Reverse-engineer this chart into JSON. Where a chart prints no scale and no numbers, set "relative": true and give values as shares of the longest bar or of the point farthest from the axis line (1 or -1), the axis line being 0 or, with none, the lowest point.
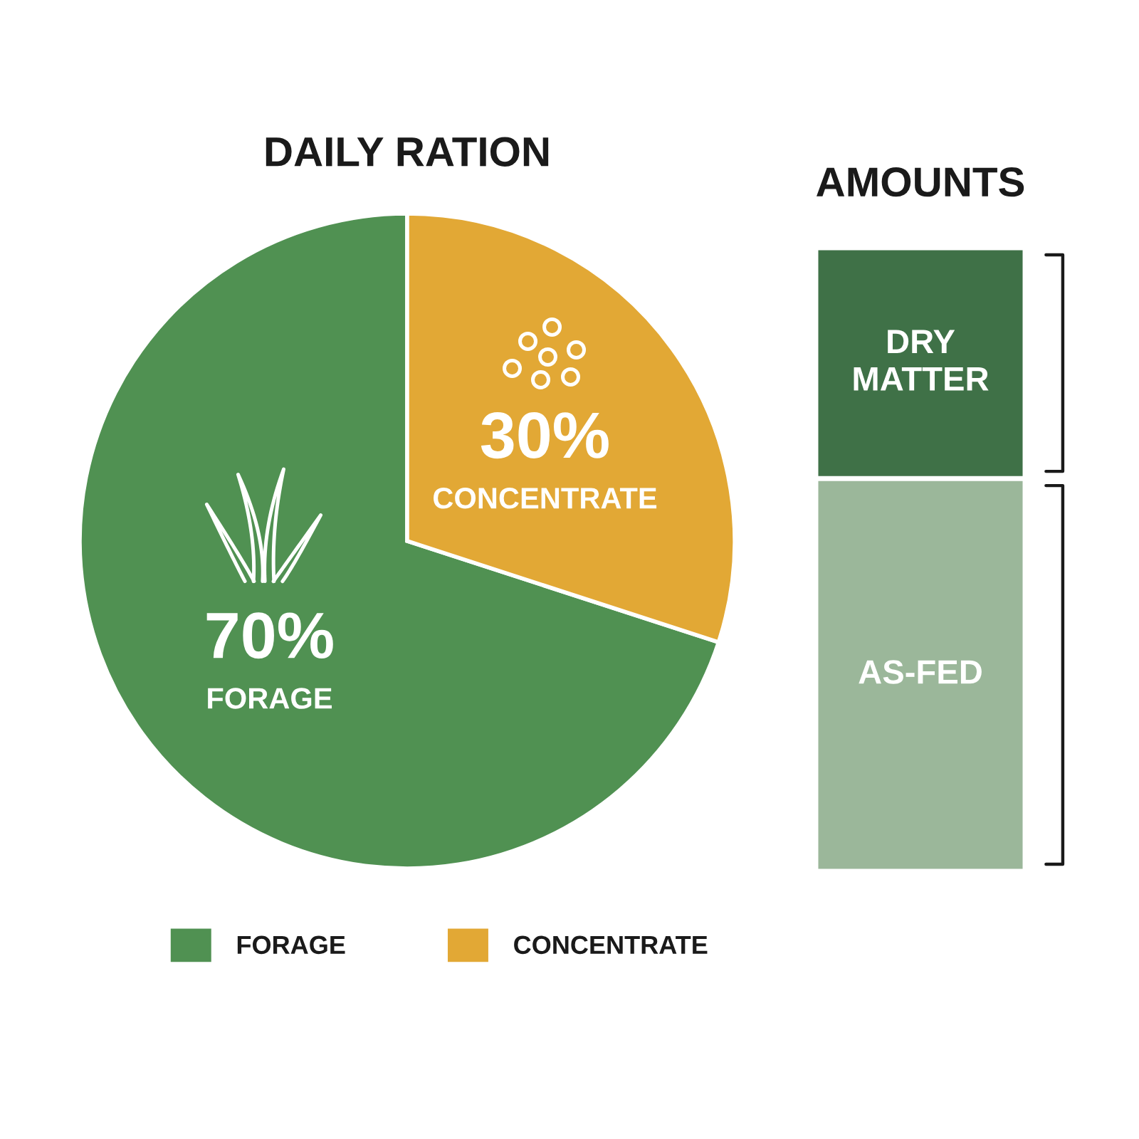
{
  "chart_data": [
    {
      "type": "pie",
      "title": "DAILY RATION",
      "categories": [
        "FORAGE",
        "CONCENTRATE"
      ],
      "values": [
        70,
        30
      ],
      "colors": [
        "#509152",
        "#e2a835"
      ],
      "value_labels": [
        "70%",
        "30%"
      ],
      "legend": "bottom"
    },
    {
      "type": "bar",
      "title": "AMOUNTS",
      "categories": [
        null
      ],
      "stacked": true,
      "relative": true,
      "series": [
        {
          "name": "AS-FED",
          "color": "#9bb79a",
          "values": [
            0.63
          ]
        },
        {
          "name": "DRY MATTER",
          "color": "#3f7147",
          "values": [
            0.37
          ]
        }
      ]
    }
  ]
}
